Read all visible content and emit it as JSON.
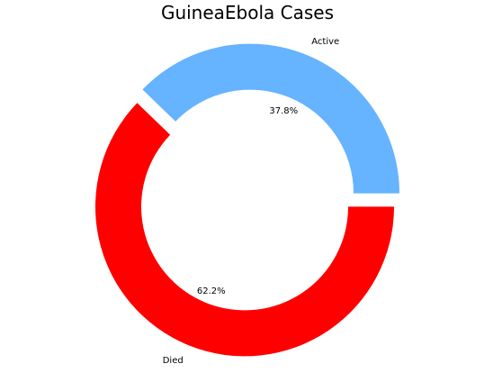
{
  "chart_data": {
    "type": "pie",
    "variant": "donut",
    "title": "GuineaEbola  Cases",
    "slices": [
      {
        "label": "Active",
        "percent": 37.8,
        "percent_label": "37.8%",
        "color": "#66b3ff",
        "exploded": true
      },
      {
        "label": "Died",
        "percent": 62.2,
        "percent_label": "62.2%",
        "color": "#ff0000",
        "exploded": true
      }
    ],
    "start_angle_deg": 0,
    "direction": "counterclockwise",
    "background": "#ffffff"
  }
}
